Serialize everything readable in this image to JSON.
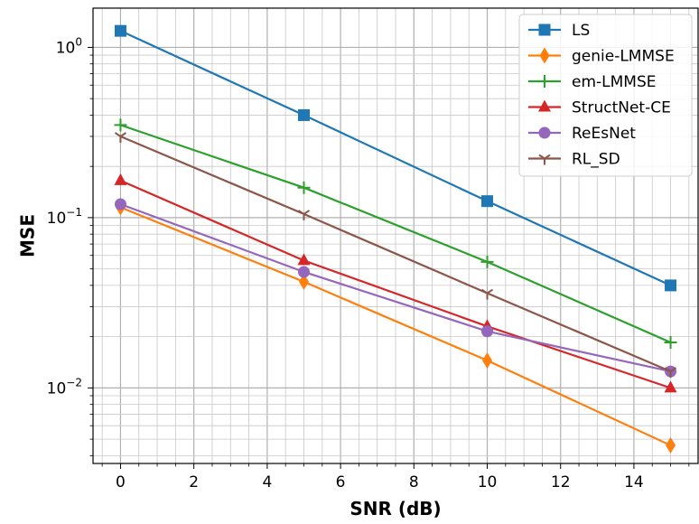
{
  "chart_data": {
    "type": "line",
    "title": "",
    "xlabel": "SNR (dB)",
    "ylabel": "MSE",
    "yscale": "log",
    "xlim": [
      -0.75,
      15.75
    ],
    "ylim": [
      0.0036,
      1.7
    ],
    "grid": true,
    "legend_position": "top-right",
    "x_ticks": [
      0,
      2,
      4,
      6,
      8,
      10,
      12,
      14
    ],
    "x_tick_labels": [
      "0",
      "2",
      "4",
      "6",
      "8",
      "10",
      "12",
      "14"
    ],
    "y_ticks": [
      {
        "value": 1,
        "base": "10",
        "exp": "0"
      },
      {
        "value": 0.1,
        "base": "10",
        "exp": "−1"
      },
      {
        "value": 0.01,
        "base": "10",
        "exp": "−2"
      }
    ],
    "x": [
      0,
      5,
      10,
      15
    ],
    "series": [
      {
        "name": "LS",
        "values": [
          1.25,
          0.4,
          0.125,
          0.04
        ],
        "color": "#1f77b4",
        "marker": "square"
      },
      {
        "name": "genie-LMMSE",
        "values": [
          0.115,
          0.042,
          0.0145,
          0.0046
        ],
        "color": "#ff7f0e",
        "marker": "diamond"
      },
      {
        "name": "em-LMMSE",
        "values": [
          0.35,
          0.15,
          0.055,
          0.0185
        ],
        "color": "#2ca02c",
        "marker": "plus"
      },
      {
        "name": "StructNet-CE",
        "values": [
          0.165,
          0.056,
          0.023,
          0.01
        ],
        "color": "#d62728",
        "marker": "triangle"
      },
      {
        "name": "ReEsNet",
        "values": [
          0.12,
          0.048,
          0.0215,
          0.0125
        ],
        "color": "#9467bd",
        "marker": "circle"
      },
      {
        "name": "RL_SD",
        "values": [
          0.3,
          0.105,
          0.036,
          0.0125
        ],
        "color": "#8c564b",
        "marker": "tri-down"
      }
    ]
  }
}
